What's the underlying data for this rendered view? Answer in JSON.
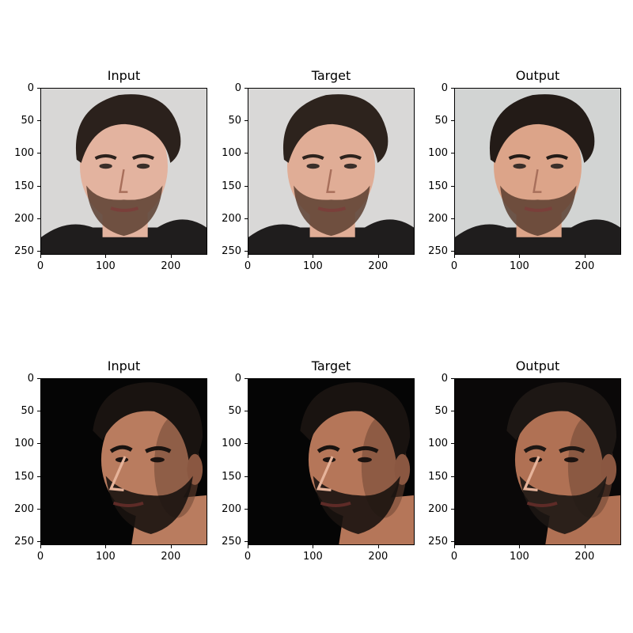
{
  "figure": {
    "rows": [
      {
        "panels": [
          {
            "title": "Input",
            "image": "face-light-background",
            "tone": "#e3b39f",
            "hair": "#2b211c",
            "bg": "#d8d7d6"
          },
          {
            "title": "Target",
            "image": "face-light-background",
            "tone": "#e0ad96",
            "hair": "#2d231d",
            "bg": "#d9d8d7"
          },
          {
            "title": "Output",
            "image": "face-light-background",
            "tone": "#dca489",
            "hair": "#231b17",
            "bg": "#d2d4d3"
          }
        ]
      },
      {
        "panels": [
          {
            "title": "Input",
            "image": "face-dark-background",
            "tone": "#b97c5f",
            "hair": "#191310",
            "bg": "#050505"
          },
          {
            "title": "Target",
            "image": "face-dark-background",
            "tone": "#b57659",
            "hair": "#191310",
            "bg": "#050505"
          },
          {
            "title": "Output",
            "image": "face-dark-background",
            "tone": "#b07154",
            "hair": "#1d1714",
            "bg": "#0a0808"
          }
        ]
      }
    ],
    "y_ticks": [
      "0",
      "50",
      "100",
      "150",
      "200",
      "250"
    ],
    "x_ticks": [
      "0",
      "100",
      "200"
    ],
    "y_tick_values": [
      0,
      50,
      100,
      150,
      200,
      250
    ],
    "x_tick_values": [
      0,
      100,
      200
    ],
    "axis_range": [
      0,
      256
    ]
  }
}
